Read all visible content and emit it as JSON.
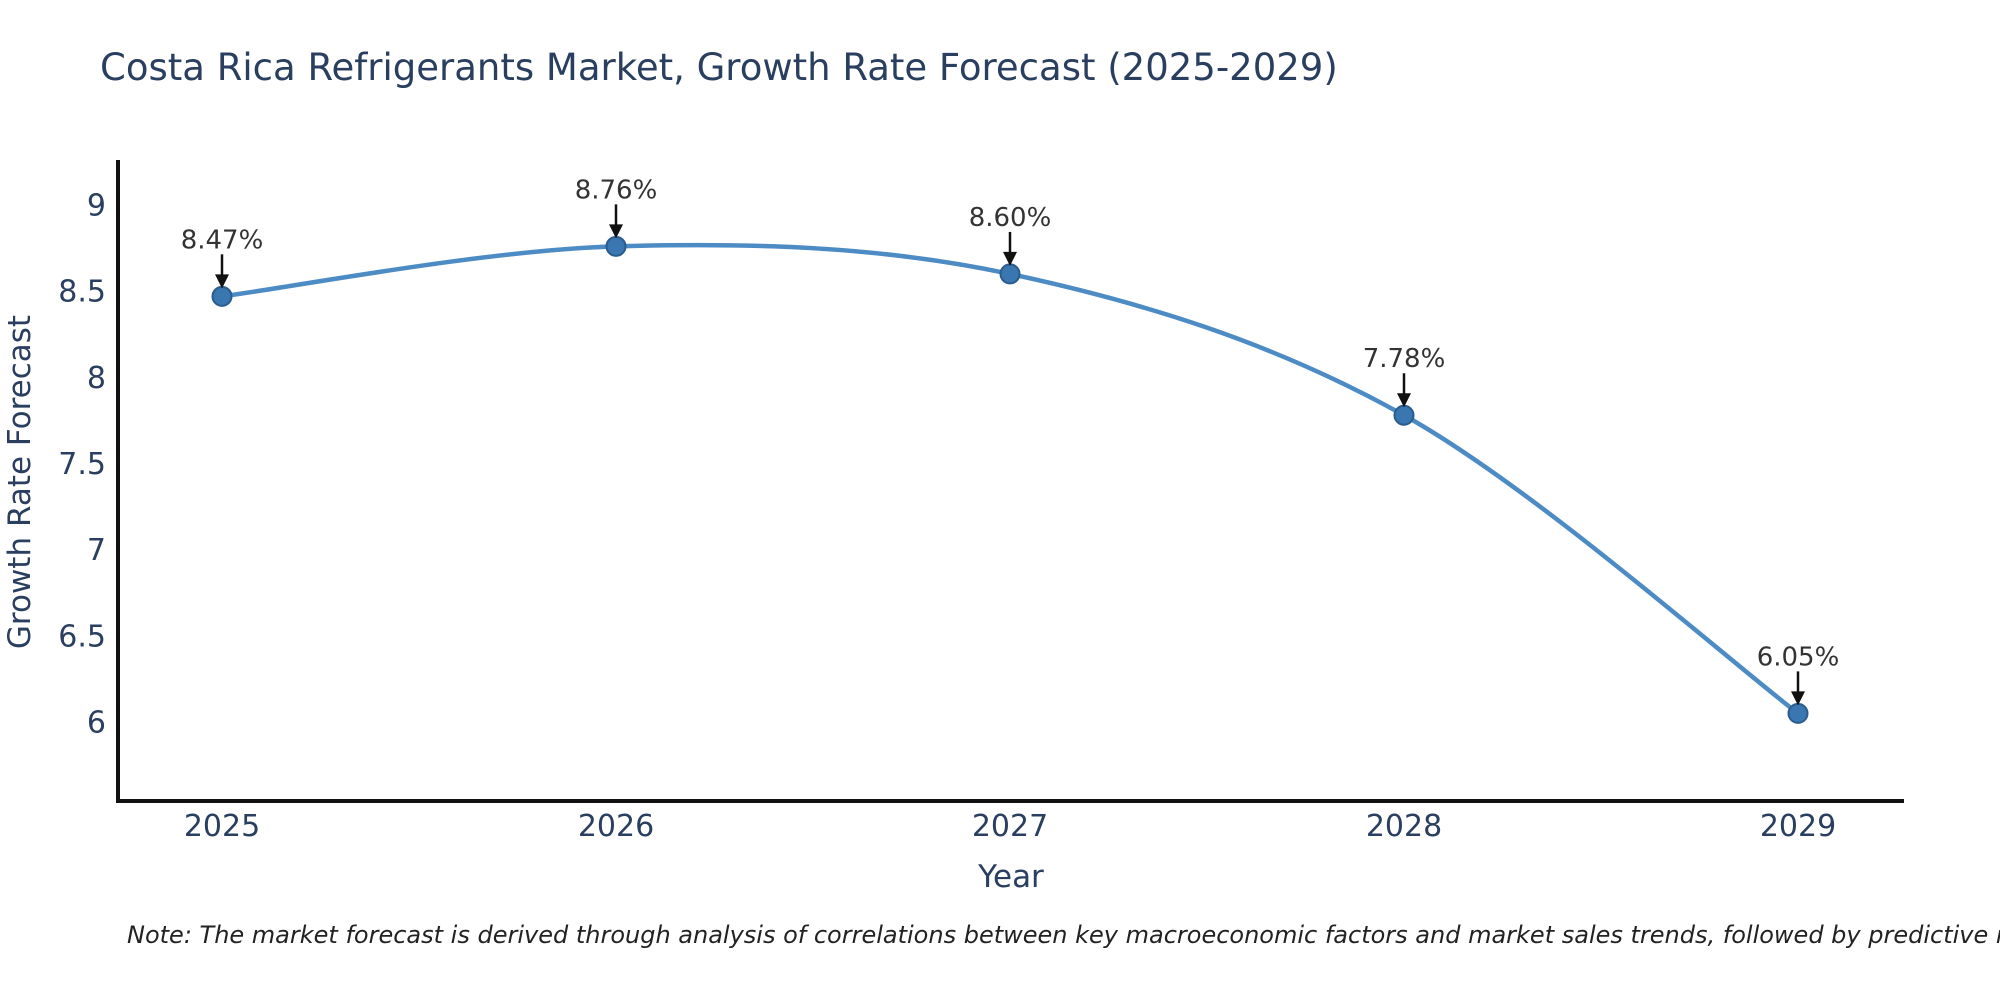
{
  "chart_data": {
    "type": "line",
    "curve": "spline",
    "title": "Costa Rica Refrigerants Market, Growth Rate Forecast (2025-2029)",
    "xlabel": "Year",
    "ylabel": "Growth Rate Forecast",
    "x": [
      2025,
      2026,
      2027,
      2028,
      2029
    ],
    "series": [
      {
        "name": "Growth Rate Forecast",
        "values": [
          8.47,
          8.76,
          8.6,
          7.78,
          6.05
        ]
      }
    ],
    "point_labels": [
      "8.47%",
      "8.76%",
      "8.60%",
      "7.78%",
      "6.05%"
    ],
    "y_ticks": [
      9,
      8.5,
      8,
      7.5,
      7,
      6.5,
      6
    ],
    "ylim": [
      5.55,
      9.26
    ],
    "grid": false,
    "legend_position": "none",
    "colors": {
      "line": "#4d8bc4",
      "marker": "#3a76b0",
      "marker_edge": "#2b5c8e",
      "text": "#2a3f5f",
      "annotation": "#333333",
      "axis": "#111111",
      "background": "#ffffff"
    },
    "footnote": "Note: The market forecast is derived through analysis of correlations between key macroeconomic factors and market sales trends, followed by predictive modeling to project future sales"
  }
}
